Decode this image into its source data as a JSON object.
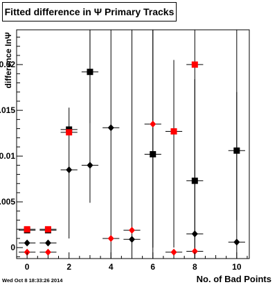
{
  "title": "Fitted difference in  Ψ  Primary Tracks",
  "timestamp": "Wed Oct  8 18:33:26 2014",
  "chart_data": {
    "type": "scatter",
    "title": "Fitted difference in  Ψ  Primary Tracks",
    "xlabel": "No. of Bad Points",
    "ylabel": "difference InΨ",
    "xlim": [
      -0.5,
      10.6
    ],
    "ylim": [
      -0.0012,
      0.0238
    ],
    "xticks": [
      0,
      2,
      4,
      6,
      8,
      10
    ],
    "xtick_labels": [
      "0",
      "2",
      "4",
      "6",
      "8",
      "10"
    ],
    "yticks": [
      0,
      0.005,
      0.01,
      0.015,
      0.02
    ],
    "ytick_labels": [
      "0",
      "0.005",
      "0.01",
      "0.015",
      "0.02"
    ],
    "grid": false,
    "series": [
      {
        "marker": "square",
        "color": "#000000",
        "points": [
          {
            "x": 0,
            "y": 0.0019,
            "xerr": 0.4,
            "ylo": 0.0019,
            "yhi": 0.0019
          },
          {
            "x": 1,
            "y": 0.0019,
            "xerr": 0.4,
            "ylo": 0.0019,
            "yhi": 0.0019
          },
          {
            "x": 2,
            "y": 0.0129,
            "xerr": 0.4,
            "ylo": 0.0129,
            "yhi": 0.0129
          },
          {
            "x": 3,
            "y": 0.0192,
            "xerr": 0.4,
            "ylo": 0.0136,
            "yhi": 0.0238
          },
          {
            "x": 6,
            "y": 0.0102,
            "xerr": 0.4,
            "ylo": 0.0,
            "yhi": 0.0238
          },
          {
            "x": 8,
            "y": 0.0073,
            "xerr": 0.4,
            "ylo": -0.0012,
            "yhi": 0.0184
          },
          {
            "x": 10,
            "y": 0.0106,
            "xerr": 0.4,
            "ylo": 0.003,
            "yhi": 0.017
          }
        ]
      },
      {
        "marker": "square",
        "color": "#ff0000",
        "points": [
          {
            "x": 0,
            "y": 0.002,
            "xerr": 0.4,
            "ylo": 0.002,
            "yhi": 0.002
          },
          {
            "x": 1,
            "y": 0.002,
            "xerr": 0.4,
            "ylo": 0.002,
            "yhi": 0.002
          },
          {
            "x": 2,
            "y": 0.0126,
            "xerr": 0.4,
            "ylo": 0.0126,
            "yhi": 0.0126
          },
          {
            "x": 7,
            "y": 0.0127,
            "xerr": 0.4,
            "ylo": 0.0,
            "yhi": 0.0205
          },
          {
            "x": 8,
            "y": 0.02,
            "xerr": 0.4,
            "ylo": 0.02,
            "yhi": 0.02
          }
        ]
      },
      {
        "marker": "diamond",
        "color": "#000000",
        "points": [
          {
            "x": 0,
            "y": 0.0005,
            "xerr": 0.4,
            "ylo": 0.0005,
            "yhi": 0.0005
          },
          {
            "x": 1,
            "y": 0.0005,
            "xerr": 0.4,
            "ylo": 0.0005,
            "yhi": 0.0005
          },
          {
            "x": 2,
            "y": 0.0085,
            "xerr": 0.4,
            "ylo": 0.001,
            "yhi": 0.0153
          },
          {
            "x": 3,
            "y": 0.009,
            "xerr": 0.4,
            "ylo": 0.0049,
            "yhi": 0.0238
          },
          {
            "x": 4,
            "y": 0.0131,
            "xerr": 0.4,
            "ylo": -0.0012,
            "yhi": 0.0238
          },
          {
            "x": 5,
            "y": 0.0009,
            "xerr": 0.4,
            "ylo": -0.0012,
            "yhi": 0.0238
          },
          {
            "x": 6,
            "y": -0.0018,
            "xerr": 0.4,
            "ylo": -0.0018,
            "yhi": 0.0238
          },
          {
            "x": 8,
            "y": 0.0015,
            "xerr": 0.4,
            "ylo": -0.0012,
            "yhi": 0.0238
          },
          {
            "x": 10,
            "y": 0.0006,
            "xerr": 0.4,
            "ylo": -0.0012,
            "yhi": 0.0238
          }
        ]
      },
      {
        "marker": "diamond",
        "color": "#ff0000",
        "points": [
          {
            "x": 0,
            "y": -0.0005,
            "xerr": 0.4,
            "ylo": -0.0005,
            "yhi": -0.0005
          },
          {
            "x": 1,
            "y": -0.0005,
            "xerr": 0.4,
            "ylo": -0.0005,
            "yhi": -0.0005
          },
          {
            "x": 4,
            "y": 0.001,
            "xerr": 0.4,
            "ylo": 0.001,
            "yhi": 0.001
          },
          {
            "x": 5,
            "y": 0.0019,
            "xerr": 0.4,
            "ylo": 0.0019,
            "yhi": 0.0019
          },
          {
            "x": 6,
            "y": 0.0135,
            "xerr": 0.4,
            "ylo": 0.0135,
            "yhi": 0.0135
          },
          {
            "x": 7,
            "y": -0.0005,
            "xerr": 0.4,
            "ylo": -0.0005,
            "yhi": -0.0005
          },
          {
            "x": 8,
            "y": -0.0004,
            "xerr": 0.4,
            "ylo": -0.0004,
            "yhi": -0.0004
          }
        ]
      }
    ]
  }
}
